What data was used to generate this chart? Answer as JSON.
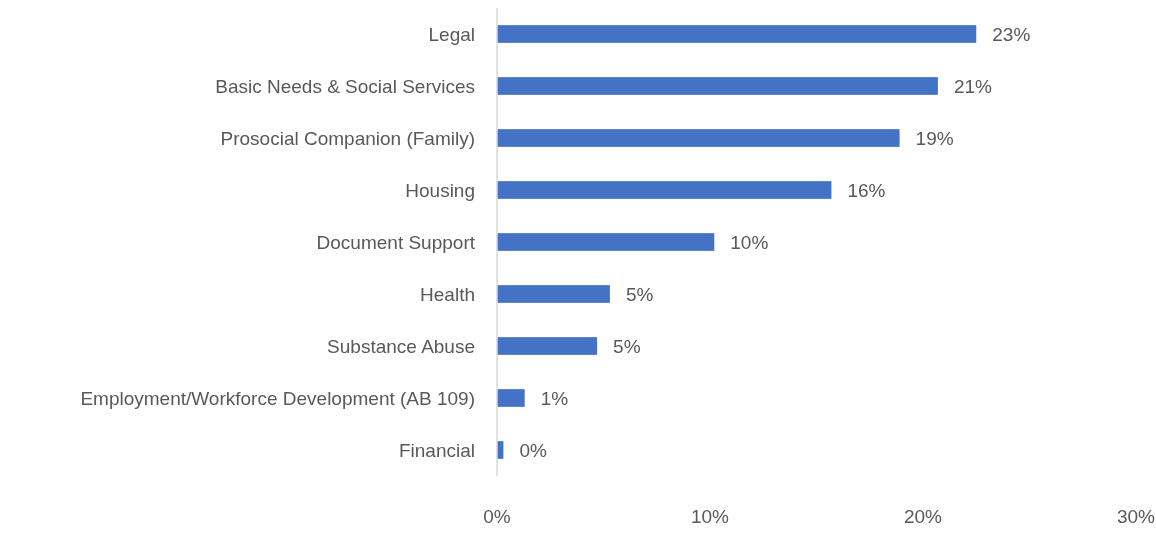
{
  "chart_data": {
    "type": "bar",
    "orientation": "horizontal",
    "categories": [
      "Legal",
      "Basic Needs & Social Services",
      "Prosocial Companion (Family)",
      "Housing",
      "Document Support",
      "Health",
      "Substance Abuse",
      "Employment/Workforce Development (AB 109)",
      "Financial"
    ],
    "values": [
      22.5,
      20.7,
      18.9,
      15.7,
      10.2,
      5.3,
      4.7,
      1.3,
      0.3
    ],
    "value_labels": [
      "23%",
      "21%",
      "19%",
      "16%",
      "10%",
      "5%",
      "5%",
      "1%",
      "0%"
    ],
    "color": "#4472c4",
    "xlim": [
      0,
      30
    ],
    "xticks": [
      {
        "value": 0,
        "label": "0%"
      },
      {
        "value": 10,
        "label": "10%"
      },
      {
        "value": 20,
        "label": "20%"
      },
      {
        "value": 30,
        "label": "30%"
      }
    ],
    "grid": false
  }
}
